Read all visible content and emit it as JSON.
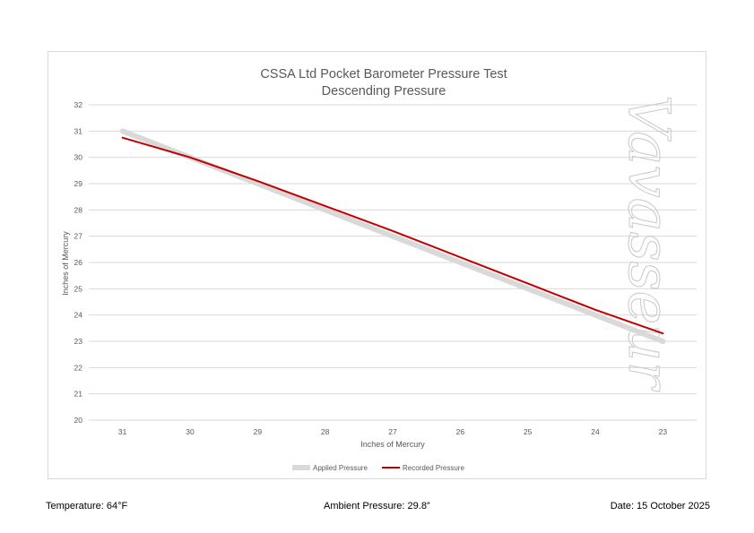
{
  "chart_data": {
    "type": "line",
    "title": "CSSA Ltd Pocket Barometer Pressure Test",
    "subtitle": "Descending Pressure",
    "xlabel": "Inches of Mercury",
    "ylabel": "Inches of Mercury",
    "categories": [
      "31",
      "30",
      "29",
      "28",
      "27",
      "26",
      "25",
      "24",
      "23"
    ],
    "ylim": [
      20,
      32
    ],
    "yticks": [
      "20",
      "21",
      "22",
      "23",
      "24",
      "25",
      "26",
      "27",
      "28",
      "29",
      "30",
      "31",
      "32"
    ],
    "grid": true,
    "legend_position": "bottom",
    "series": [
      {
        "name": "Applied Pressure",
        "values": [
          31,
          30,
          29,
          28,
          27,
          26,
          25,
          24,
          23
        ],
        "color": "#d9d9d9"
      },
      {
        "name": "Recorded Pressure",
        "values": [
          30.75,
          30,
          29.1,
          28.15,
          27.2,
          26.2,
          25.2,
          24.2,
          23.3
        ],
        "color": "#c00000"
      }
    ],
    "watermark": "Vavasseur"
  },
  "footer": {
    "temperature": "Temperature: 64°F",
    "ambient": "Ambient Pressure: 29.8”",
    "date": "Date: 15 October 2025"
  }
}
